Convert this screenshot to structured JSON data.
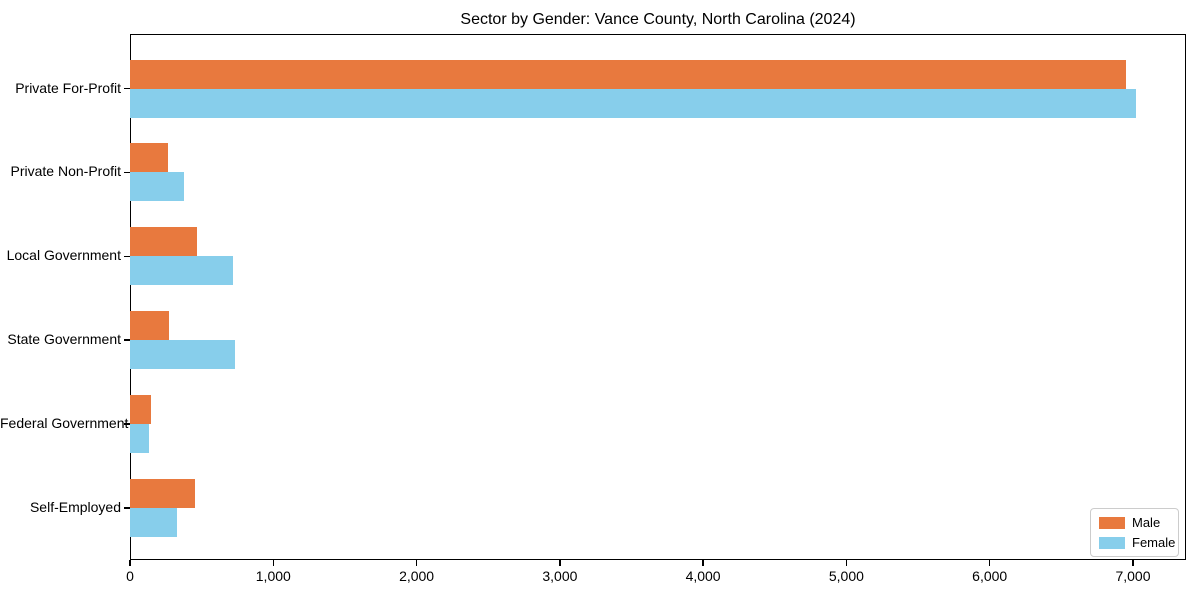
{
  "title": "Sector by Gender: Vance County, North Carolina (2024)",
  "chart_data": {
    "type": "bar",
    "orientation": "horizontal",
    "title": "Sector by Gender: Vance County, North Carolina (2024)",
    "categories": [
      "Private For-Profit",
      "Private Non-Profit",
      "Local Government",
      "State Government",
      "Federal Government",
      "Self-Employed"
    ],
    "series": [
      {
        "name": "Male",
        "color": "#e8793e",
        "values": [
          6950,
          265,
          465,
          275,
          145,
          455
        ]
      },
      {
        "name": "Female",
        "color": "#87ceeb",
        "values": [
          7020,
          375,
          720,
          730,
          135,
          325
        ]
      }
    ],
    "xlabel": "",
    "ylabel": "",
    "xlim": [
      0,
      7370
    ],
    "x_ticks": [
      0,
      1000,
      2000,
      3000,
      4000,
      5000,
      6000,
      7000
    ],
    "x_tick_labels": [
      "0",
      "1,000",
      "2,000",
      "3,000",
      "4,000",
      "5,000",
      "6,000",
      "7,000"
    ],
    "grid": false,
    "legend": {
      "position": "lower right",
      "entries": [
        "Male",
        "Female"
      ]
    }
  }
}
